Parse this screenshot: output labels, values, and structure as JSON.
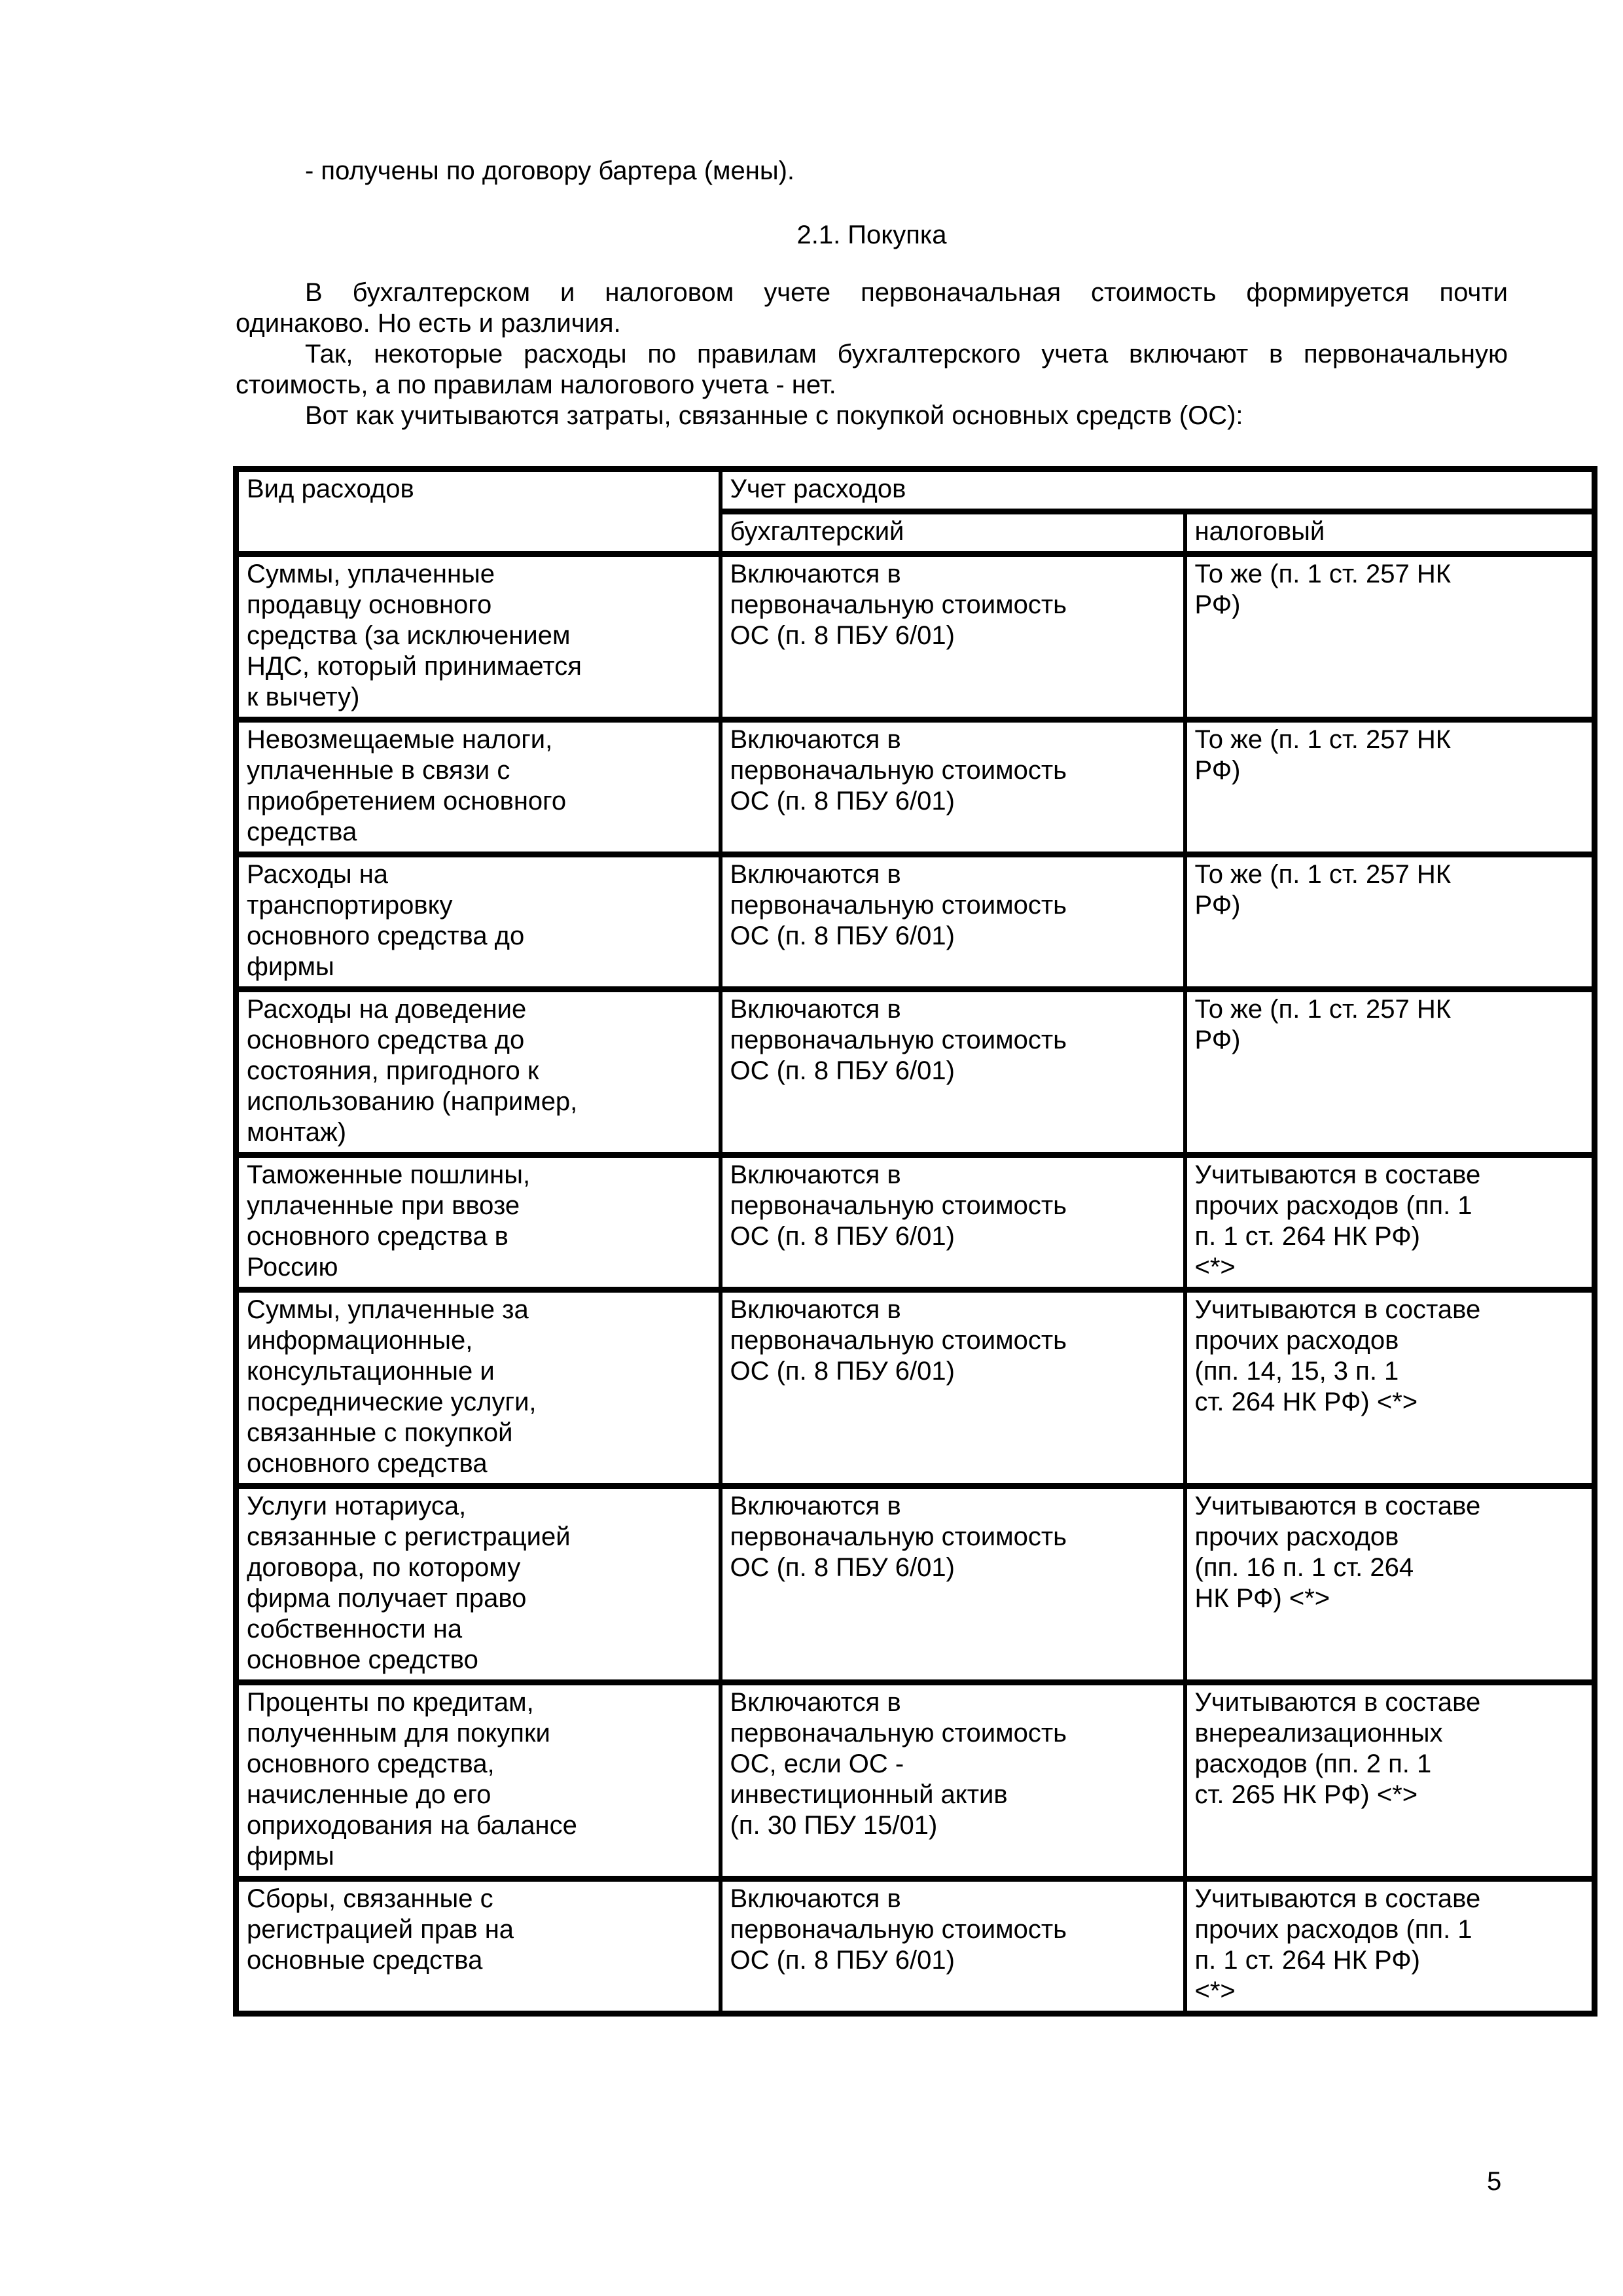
{
  "page": {
    "number": "5"
  },
  "intro": {
    "bullet": "- получены по договору бартера (мены).",
    "title": "2.1. Покупка",
    "p1_l1": "В бухгалтерском и налоговом учете первоначальная стоимость формируется почти",
    "p1_l2": "одинаково. Но есть и различия.",
    "p2_l1": "Так, некоторые расходы по правилам бухгалтерского учета включают в первоначальную",
    "p2_l2": "стоимость, а по правилам налогового учета - нет.",
    "p3_l1": "Вот как учитываются затраты, связанные с покупкой основных средств (ОС):"
  },
  "table": {
    "header": {
      "col_expense": "Вид расходов",
      "col_group": "Учет расходов",
      "col_accounting": "бухгалтерский",
      "col_tax": "налоговый"
    },
    "rows": [
      {
        "expense": "Суммы, уплаченные\nпродавцу основного\nсредства (за исключением\nНДС, который принимается\nк вычету)",
        "accounting": "Включаются в\nпервоначальную стоимость\nОС (п. 8 ПБУ 6/01)",
        "tax": "То же (п. 1 ст. 257 НК\nРФ)"
      },
      {
        "expense": "Невозмещаемые налоги,\nуплаченные в связи с\nприобретением основного\nсредства",
        "accounting": "Включаются в\nпервоначальную стоимость\nОС (п. 8 ПБУ 6/01)",
        "tax": "То же (п. 1 ст. 257 НК\nРФ)"
      },
      {
        "expense": "Расходы на\nтранспортировку\nосновного средства до\nфирмы",
        "accounting": "Включаются в\nпервоначальную стоимость\nОС (п. 8 ПБУ 6/01)",
        "tax": "То же (п. 1 ст. 257 НК\nРФ)"
      },
      {
        "expense": "Расходы на доведение\nосновного средства до\nсостояния, пригодного к\nиспользованию (например,\nмонтаж)",
        "accounting": "Включаются в\nпервоначальную стоимость\nОС (п. 8 ПБУ 6/01)",
        "tax": "То же (п. 1 ст. 257 НК\nРФ)"
      },
      {
        "expense": "Таможенные пошлины,\nуплаченные при ввозе\nосновного средства в\nРоссию",
        "accounting": "Включаются в\nпервоначальную стоимость\nОС (п. 8 ПБУ 6/01)",
        "tax": "Учитываются в составе\nпрочих расходов (пп. 1\nп. 1 ст. 264 НК РФ)\n<*>"
      },
      {
        "expense": "Суммы, уплаченные за\nинформационные,\nконсультационные и\nпосреднические услуги,\nсвязанные с покупкой\nосновного средства",
        "accounting": "Включаются в\nпервоначальную стоимость\nОС (п. 8 ПБУ 6/01)",
        "tax": "Учитываются в составе\nпрочих расходов\n(пп. 14, 15, 3 п. 1\nст. 264 НК РФ) <*>"
      },
      {
        "expense": "Услуги нотариуса,\nсвязанные с регистрацией\nдоговора, по которому\nфирма получает право\nсобственности на\nосновное средство",
        "accounting": "Включаются в\nпервоначальную стоимость\nОС (п. 8 ПБУ 6/01)",
        "tax": "Учитываются в составе\nпрочих расходов\n(пп. 16 п. 1 ст. 264\nНК РФ) <*>"
      },
      {
        "expense": "Проценты по кредитам,\nполученным для покупки\nосновного средства,\nначисленные до его\nоприходования на балансе\nфирмы",
        "accounting": "Включаются в\nпервоначальную стоимость\nОС, если ОС -\nинвестиционный актив\n(п. 30 ПБУ 15/01)",
        "tax": "Учитываются в составе\nвнереализационных\nрасходов (пп. 2 п. 1\nст. 265 НК РФ) <*>"
      },
      {
        "expense": "Сборы, связанные с\nрегистрацией прав на\nосновные средства",
        "accounting": "Включаются в\nпервоначальную стоимость\nОС (п. 8 ПБУ 6/01)",
        "tax": "Учитываются в составе\nпрочих расходов (пп. 1\nп. 1 ст. 264 НК РФ)\n<*>"
      }
    ]
  }
}
